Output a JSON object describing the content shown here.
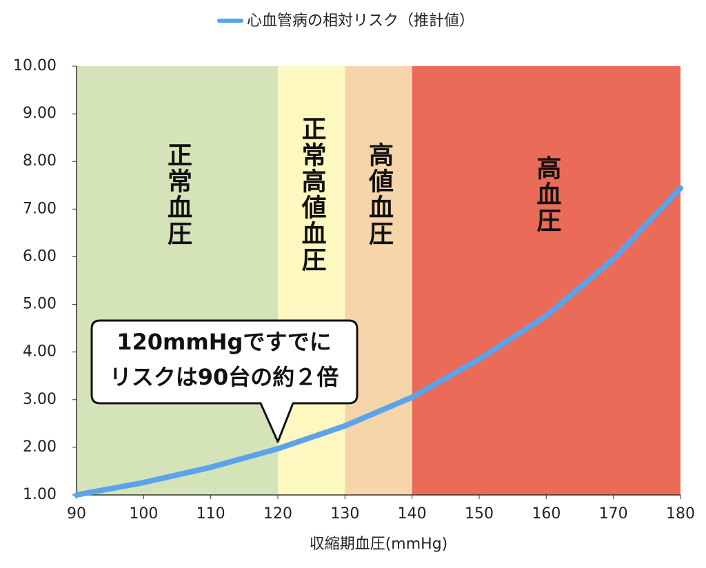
{
  "chart_data": {
    "type": "line",
    "legend_label": "心血管病の相対リスク（推計値）",
    "x_label": "収縮期血圧(mmHg)",
    "x": [
      90,
      100,
      110,
      120,
      130,
      140,
      150,
      160,
      170,
      180
    ],
    "series": [
      {
        "name": "心血管病の相対リスク（推計値）",
        "color": "#5ba3ea",
        "values": [
          1.0,
          1.26,
          1.58,
          1.97,
          2.45,
          3.05,
          3.85,
          4.76,
          5.95,
          7.44
        ]
      }
    ],
    "xlim": [
      90,
      180
    ],
    "xticks": [
      90,
      100,
      110,
      120,
      130,
      140,
      150,
      160,
      170,
      180
    ],
    "ylim": [
      1,
      10
    ],
    "yticks": [
      {
        "value": 1,
        "label": "1.00"
      },
      {
        "value": 2,
        "label": "2.00"
      },
      {
        "value": 3,
        "label": "3.00"
      },
      {
        "value": 4,
        "label": "4.00"
      },
      {
        "value": 5,
        "label": "5.00"
      },
      {
        "value": 6,
        "label": "6.00"
      },
      {
        "value": 7,
        "label": "7.00"
      },
      {
        "value": 8,
        "label": "8.00"
      },
      {
        "value": 9,
        "label": "9.00"
      },
      {
        "value": 10,
        "label": "10.00"
      }
    ],
    "bands": [
      {
        "from": 90,
        "to": 120,
        "label": "正常血圧",
        "color": "#d5e4b8"
      },
      {
        "from": 120,
        "to": 130,
        "label": "正常高値血圧",
        "color": "#fdf8c0"
      },
      {
        "from": 130,
        "to": 140,
        "label": "高値血圧",
        "color": "#f7d5aa"
      },
      {
        "from": 140,
        "to": 180,
        "label": "高血圧",
        "color": "#ea6b58"
      }
    ],
    "annotation": {
      "x": 120,
      "y": 1.97,
      "lines": [
        "120mmHgですでに",
        "リスクは90台の約２倍"
      ]
    }
  }
}
